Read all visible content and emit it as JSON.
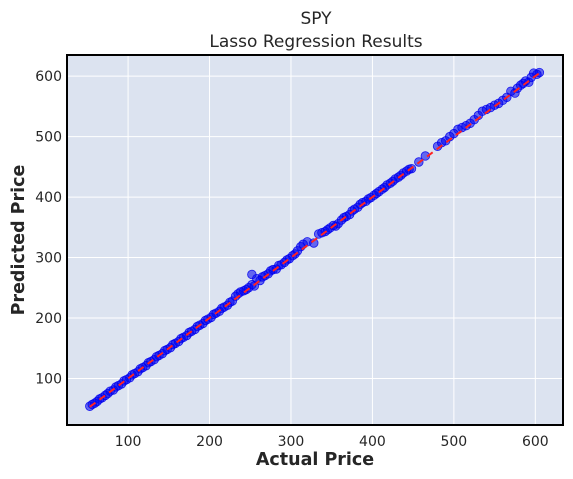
{
  "chart_data": {
    "type": "scatter",
    "title": "SPY",
    "subtitle": "Lasso Regression Results",
    "xlabel": "Actual Price",
    "ylabel": "Predicted Price",
    "xlim": [
      25,
      634
    ],
    "ylim": [
      23,
      635
    ],
    "xticks": [
      100,
      200,
      300,
      400,
      500,
      600
    ],
    "yticks": [
      100,
      200,
      300,
      400,
      500,
      600
    ],
    "grid": true,
    "colors": {
      "background": "#dce3f0",
      "grid": "#ffffff",
      "points": "#0000ee",
      "reference_line": "#ff2222",
      "frame": "#000000"
    },
    "reference_line": {
      "style": "dashed",
      "from": [
        53,
        53
      ],
      "to": [
        608,
        608
      ]
    },
    "series": [
      {
        "marker": "circle",
        "points": [
          [
            53,
            54
          ],
          [
            56,
            57
          ],
          [
            59,
            59
          ],
          [
            62,
            62
          ],
          [
            65,
            66
          ],
          [
            68,
            68
          ],
          [
            72,
            72
          ],
          [
            75,
            75
          ],
          [
            78,
            79
          ],
          [
            82,
            81
          ],
          [
            85,
            86
          ],
          [
            88,
            88
          ],
          [
            92,
            91
          ],
          [
            95,
            96
          ],
          [
            98,
            98
          ],
          [
            102,
            101
          ],
          [
            105,
            106
          ],
          [
            108,
            108
          ],
          [
            112,
            111
          ],
          [
            115,
            116
          ],
          [
            118,
            118
          ],
          [
            122,
            121
          ],
          [
            125,
            126
          ],
          [
            128,
            128
          ],
          [
            132,
            131
          ],
          [
            135,
            136
          ],
          [
            138,
            138
          ],
          [
            142,
            141
          ],
          [
            145,
            146
          ],
          [
            148,
            148
          ],
          [
            152,
            151
          ],
          [
            155,
            156
          ],
          [
            158,
            158
          ],
          [
            162,
            161
          ],
          [
            165,
            166
          ],
          [
            168,
            168
          ],
          [
            172,
            171
          ],
          [
            175,
            176
          ],
          [
            178,
            178
          ],
          [
            182,
            181
          ],
          [
            185,
            186
          ],
          [
            188,
            188
          ],
          [
            192,
            191
          ],
          [
            195,
            196
          ],
          [
            198,
            198
          ],
          [
            202,
            201
          ],
          [
            205,
            206
          ],
          [
            208,
            208
          ],
          [
            212,
            211
          ],
          [
            215,
            216
          ],
          [
            218,
            218
          ],
          [
            222,
            221
          ],
          [
            225,
            226
          ],
          [
            228,
            228
          ],
          [
            232,
            236
          ],
          [
            235,
            240
          ],
          [
            238,
            243
          ],
          [
            242,
            245
          ],
          [
            245,
            247
          ],
          [
            248,
            250
          ],
          [
            252,
            255
          ],
          [
            255,
            253
          ],
          [
            252,
            272
          ],
          [
            258,
            265
          ],
          [
            262,
            262
          ],
          [
            265,
            268
          ],
          [
            268,
            270
          ],
          [
            272,
            273
          ],
          [
            275,
            278
          ],
          [
            278,
            280
          ],
          [
            282,
            281
          ],
          [
            285,
            287
          ],
          [
            288,
            288
          ],
          [
            292,
            292
          ],
          [
            295,
            296
          ],
          [
            298,
            298
          ],
          [
            302,
            303
          ],
          [
            305,
            306
          ],
          [
            308,
            311
          ],
          [
            312,
            318
          ],
          [
            315,
            322
          ],
          [
            320,
            326
          ],
          [
            328,
            324
          ],
          [
            334,
            339
          ],
          [
            338,
            341
          ],
          [
            342,
            343
          ],
          [
            345,
            346
          ],
          [
            348,
            349
          ],
          [
            352,
            353
          ],
          [
            355,
            352
          ],
          [
            358,
            356
          ],
          [
            362,
            362
          ],
          [
            365,
            366
          ],
          [
            368,
            368
          ],
          [
            372,
            371
          ],
          [
            375,
            377
          ],
          [
            378,
            380
          ],
          [
            382,
            383
          ],
          [
            385,
            388
          ],
          [
            388,
            391
          ],
          [
            392,
            393
          ],
          [
            395,
            397
          ],
          [
            398,
            399
          ],
          [
            402,
            403
          ],
          [
            405,
            406
          ],
          [
            408,
            409
          ],
          [
            412,
            413
          ],
          [
            415,
            416
          ],
          [
            418,
            420
          ],
          [
            422,
            423
          ],
          [
            425,
            426
          ],
          [
            428,
            430
          ],
          [
            432,
            433
          ],
          [
            435,
            436
          ],
          [
            438,
            440
          ],
          [
            442,
            443
          ],
          [
            445,
            446
          ],
          [
            448,
            447
          ],
          [
            457,
            458
          ],
          [
            465,
            468
          ],
          [
            480,
            484
          ],
          [
            485,
            490
          ],
          [
            490,
            493
          ],
          [
            495,
            500
          ],
          [
            500,
            505
          ],
          [
            505,
            512
          ],
          [
            510,
            515
          ],
          [
            515,
            518
          ],
          [
            520,
            522
          ],
          [
            525,
            528
          ],
          [
            530,
            535
          ],
          [
            535,
            542
          ],
          [
            540,
            545
          ],
          [
            545,
            548
          ],
          [
            550,
            552
          ],
          [
            555,
            555
          ],
          [
            560,
            560
          ],
          [
            565,
            565
          ],
          [
            570,
            575
          ],
          [
            575,
            572
          ],
          [
            578,
            580
          ],
          [
            582,
            585
          ],
          [
            585,
            588
          ],
          [
            588,
            592
          ],
          [
            592,
            590
          ],
          [
            595,
            598
          ],
          [
            598,
            605
          ],
          [
            602,
            603
          ],
          [
            605,
            606
          ]
        ]
      }
    ]
  }
}
